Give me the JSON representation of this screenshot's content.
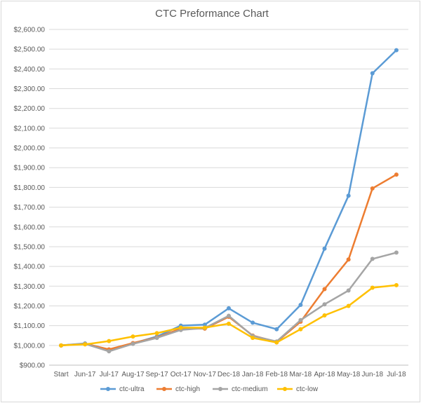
{
  "chart_data": {
    "type": "line",
    "title": "CTC Preformance Chart",
    "xlabel": "",
    "ylabel": "",
    "categories": [
      "Start",
      "Jun-17",
      "Jul-17",
      "Aug-17",
      "Sep-17",
      "Oct-17",
      "Nov-17",
      "Dec-18",
      "Jan-18",
      "Feb-18",
      "Mar-18",
      "Apr-18",
      "May-18",
      "Jun-18",
      "Jul-18"
    ],
    "ylim": [
      900,
      2600
    ],
    "ytick_step": 100,
    "ytick_labels": [
      "$900.00",
      "$1,000.00",
      "$1,100.00",
      "$1,200.00",
      "$1,300.00",
      "$1,400.00",
      "$1,500.00",
      "$1,600.00",
      "$1,700.00",
      "$1,800.00",
      "$1,900.00",
      "$2,000.00",
      "$2,100.00",
      "$2,200.00",
      "$2,300.00",
      "$2,400.00",
      "$2,500.00",
      "$2,600.00"
    ],
    "grid": true,
    "legend_position": "bottom",
    "series": [
      {
        "name": "ctc-ultra",
        "color": "#5b9bd5",
        "values": [
          1000,
          1010,
          978,
          1010,
          1045,
          1100,
          1105,
          1188,
          1115,
          1082,
          1205,
          1490,
          1758,
          2378,
          2495
        ]
      },
      {
        "name": "ctc-high",
        "color": "#ed7d31",
        "values": [
          1000,
          1008,
          980,
          1012,
          1040,
          1085,
          1085,
          1145,
          1050,
          1018,
          1120,
          1285,
          1435,
          1795,
          1865
        ]
      },
      {
        "name": "ctc-medium",
        "color": "#a5a5a5",
        "values": [
          1000,
          1008,
          970,
          1008,
          1038,
          1078,
          1088,
          1150,
          1048,
          1020,
          1128,
          1208,
          1278,
          1438,
          1470
        ]
      },
      {
        "name": "ctc-low",
        "color": "#ffc000",
        "values": [
          1000,
          1005,
          1022,
          1045,
          1062,
          1090,
          1090,
          1110,
          1038,
          1015,
          1082,
          1152,
          1200,
          1292,
          1305
        ]
      }
    ]
  }
}
